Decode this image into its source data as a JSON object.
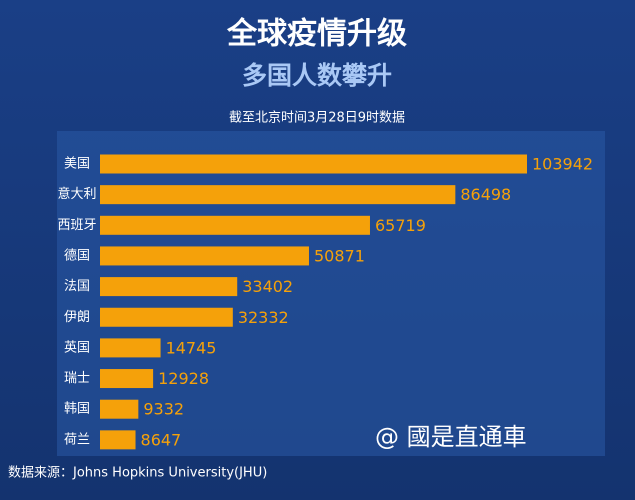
{
  "chart_data": {
    "type": "bar",
    "orientation": "horizontal",
    "title": "全球疫情升级",
    "subtitle": "多国人数攀升",
    "note": "截至北京时间3月28日9时数据",
    "source": "数据来源：Johns Hopkins University(JHU)",
    "watermark": "@ 國是直通車",
    "categories": [
      "美国",
      "意大利",
      "西班牙",
      "德国",
      "法国",
      "伊朗",
      "英国",
      "瑞士",
      "韩国",
      "荷兰"
    ],
    "values": [
      103942,
      86498,
      65719,
      50871,
      33402,
      32332,
      14745,
      12928,
      9332,
      8647
    ],
    "color": "#f5a10a"
  }
}
